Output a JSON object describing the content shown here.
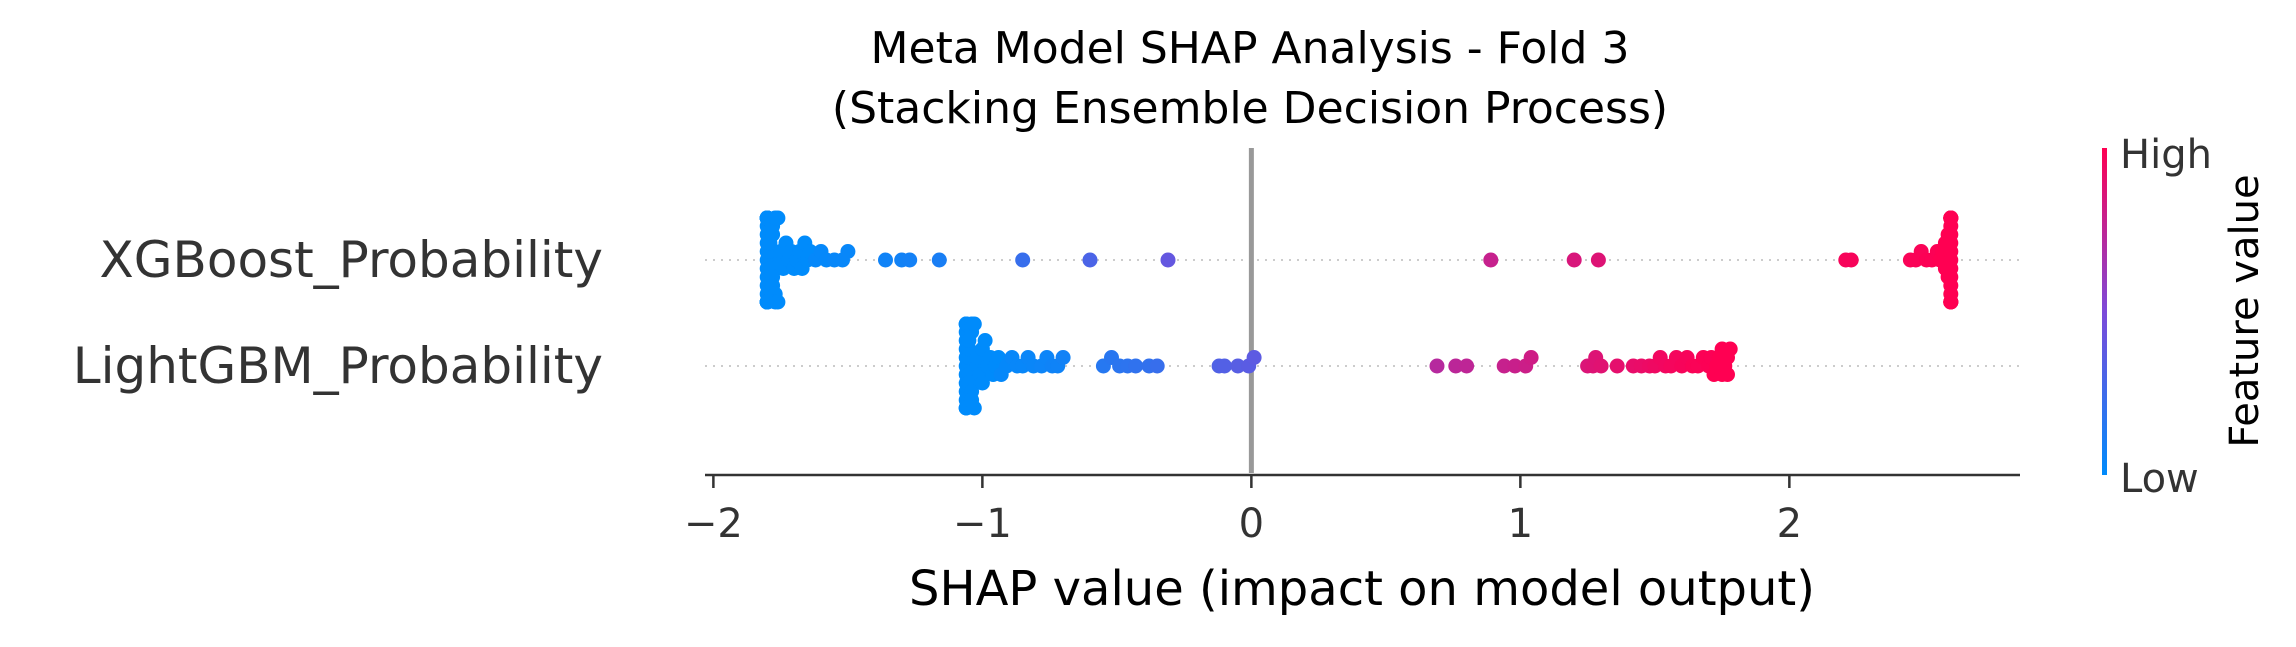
{
  "chart_data": {
    "type": "scatter",
    "title": "Meta Model SHAP Analysis - Fold 3",
    "subtitle": "(Stacking Ensemble Decision Process)",
    "xlabel": "SHAP value (impact on model output)",
    "xlim": [
      -2.02,
      2.85
    ],
    "xticks": [
      -2,
      -1,
      0,
      1,
      2
    ],
    "xtick_labels": [
      "−2",
      "−1",
      "0",
      "1",
      "2"
    ],
    "zero_line": 0,
    "colorbar": {
      "label": "Feature value",
      "high_label": "High",
      "low_label": "Low",
      "low_color": "#008bfb",
      "mid_color": "#7d4ad9",
      "high_color": "#ff0052"
    },
    "features": [
      {
        "name": "XGBoost_Probability",
        "values": [
          -1.8,
          -1.8,
          -1.8,
          -1.8,
          -1.8,
          -1.8,
          -1.8,
          -1.8,
          -1.8,
          -1.8,
          -1.8,
          -1.8,
          -1.8,
          -1.8,
          -1.8,
          -1.8,
          -1.8,
          -1.8,
          -1.8,
          -1.8,
          -1.8,
          -1.8,
          -1.8,
          -1.8,
          -1.8,
          -1.8,
          -1.8,
          -1.8,
          -1.79,
          -1.79,
          -1.79,
          -1.79,
          -1.78,
          -1.78,
          -1.78,
          -1.78,
          -1.77,
          -1.77,
          -1.77,
          -1.76,
          -1.76,
          -1.75,
          -1.75,
          -1.74,
          -1.73,
          -1.72,
          -1.71,
          -1.7,
          -1.69,
          -1.68,
          -1.67,
          -1.66,
          -1.65,
          -1.64,
          -1.62,
          -1.6,
          -1.58,
          -1.55,
          -1.52,
          -1.5,
          -1.36,
          -1.3,
          -1.27,
          -1.16,
          -0.85,
          -0.6,
          -0.31,
          0.89,
          1.2,
          1.29,
          2.21,
          2.23,
          2.45,
          2.47,
          2.49,
          2.51,
          2.53,
          2.55,
          2.56,
          2.57,
          2.58,
          2.58,
          2.59,
          2.59,
          2.6,
          2.6,
          2.6,
          2.6,
          2.6,
          2.6,
          2.6,
          2.6,
          2.6,
          2.6,
          2.6,
          2.6,
          2.6,
          2.6,
          2.6,
          2.6,
          2.6,
          2.6,
          2.6,
          2.6
        ],
        "colors": [
          0,
          0,
          0,
          0,
          0,
          0,
          0,
          0,
          0,
          0,
          0,
          0,
          0,
          0,
          0,
          0,
          0,
          0,
          0,
          0,
          0,
          0,
          0,
          0,
          0,
          0,
          0,
          0,
          0,
          0,
          0,
          0,
          0,
          0,
          0,
          0,
          0,
          0,
          0,
          0,
          0,
          0,
          0,
          0,
          0,
          0,
          0,
          0,
          0,
          0,
          0,
          0,
          0,
          0,
          0.02,
          0.02,
          0.02,
          0.03,
          0.03,
          0.03,
          0.06,
          0.07,
          0.08,
          0.1,
          0.22,
          0.3,
          0.4,
          0.78,
          0.85,
          0.87,
          0.97,
          0.97,
          0.98,
          0.98,
          0.98,
          0.99,
          0.99,
          0.99,
          1,
          1,
          1,
          1,
          1,
          1,
          1,
          1,
          1,
          1,
          1,
          1,
          1,
          1,
          1,
          1,
          1,
          1,
          1,
          1,
          1,
          1,
          1,
          1,
          1,
          1
        ]
      },
      {
        "name": "LightGBM_Probability",
        "values": [
          -1.06,
          -1.06,
          -1.06,
          -1.06,
          -1.06,
          -1.06,
          -1.06,
          -1.06,
          -1.06,
          -1.06,
          -1.06,
          -1.06,
          -1.06,
          -1.06,
          -1.06,
          -1.05,
          -1.05,
          -1.05,
          -1.05,
          -1.05,
          -1.05,
          -1.04,
          -1.04,
          -1.04,
          -1.04,
          -1.03,
          -1.03,
          -1.02,
          -1.02,
          -1.01,
          -1.0,
          -1.0,
          -0.99,
          -0.98,
          -0.97,
          -0.96,
          -0.95,
          -0.94,
          -0.93,
          -0.91,
          -0.89,
          -0.87,
          -0.85,
          -0.83,
          -0.81,
          -0.78,
          -0.76,
          -0.74,
          -0.72,
          -0.7,
          -0.55,
          -0.52,
          -0.49,
          -0.46,
          -0.43,
          -0.38,
          -0.35,
          -0.12,
          -0.1,
          -0.05,
          -0.01,
          0.01,
          0.69,
          0.76,
          0.8,
          0.94,
          0.98,
          1.02,
          1.04,
          1.25,
          1.27,
          1.28,
          1.3,
          1.36,
          1.42,
          1.45,
          1.48,
          1.5,
          1.52,
          1.54,
          1.56,
          1.58,
          1.6,
          1.62,
          1.64,
          1.66,
          1.68,
          1.7,
          1.71,
          1.72,
          1.73,
          1.74,
          1.75,
          1.75,
          1.76,
          1.77,
          1.77,
          1.78
        ],
        "colors": [
          0,
          0,
          0,
          0,
          0,
          0,
          0,
          0,
          0,
          0,
          0,
          0,
          0,
          0,
          0,
          0,
          0,
          0,
          0,
          0,
          0,
          0,
          0,
          0,
          0,
          0,
          0,
          0,
          0,
          0,
          0,
          0,
          0,
          0,
          0,
          0,
          0,
          0,
          0.02,
          0.02,
          0.03,
          0.03,
          0.03,
          0.04,
          0.04,
          0.05,
          0.05,
          0.06,
          0.06,
          0.07,
          0.15,
          0.16,
          0.17,
          0.18,
          0.19,
          0.2,
          0.22,
          0.32,
          0.33,
          0.35,
          0.36,
          0.37,
          0.72,
          0.74,
          0.75,
          0.78,
          0.79,
          0.8,
          0.81,
          0.86,
          0.87,
          0.87,
          0.88,
          0.9,
          0.91,
          0.92,
          0.93,
          0.94,
          0.95,
          0.95,
          0.96,
          0.96,
          0.97,
          0.97,
          0.98,
          0.98,
          0.99,
          0.99,
          0.99,
          1,
          1,
          1,
          1,
          1,
          1,
          1,
          1,
          1
        ]
      }
    ]
  }
}
